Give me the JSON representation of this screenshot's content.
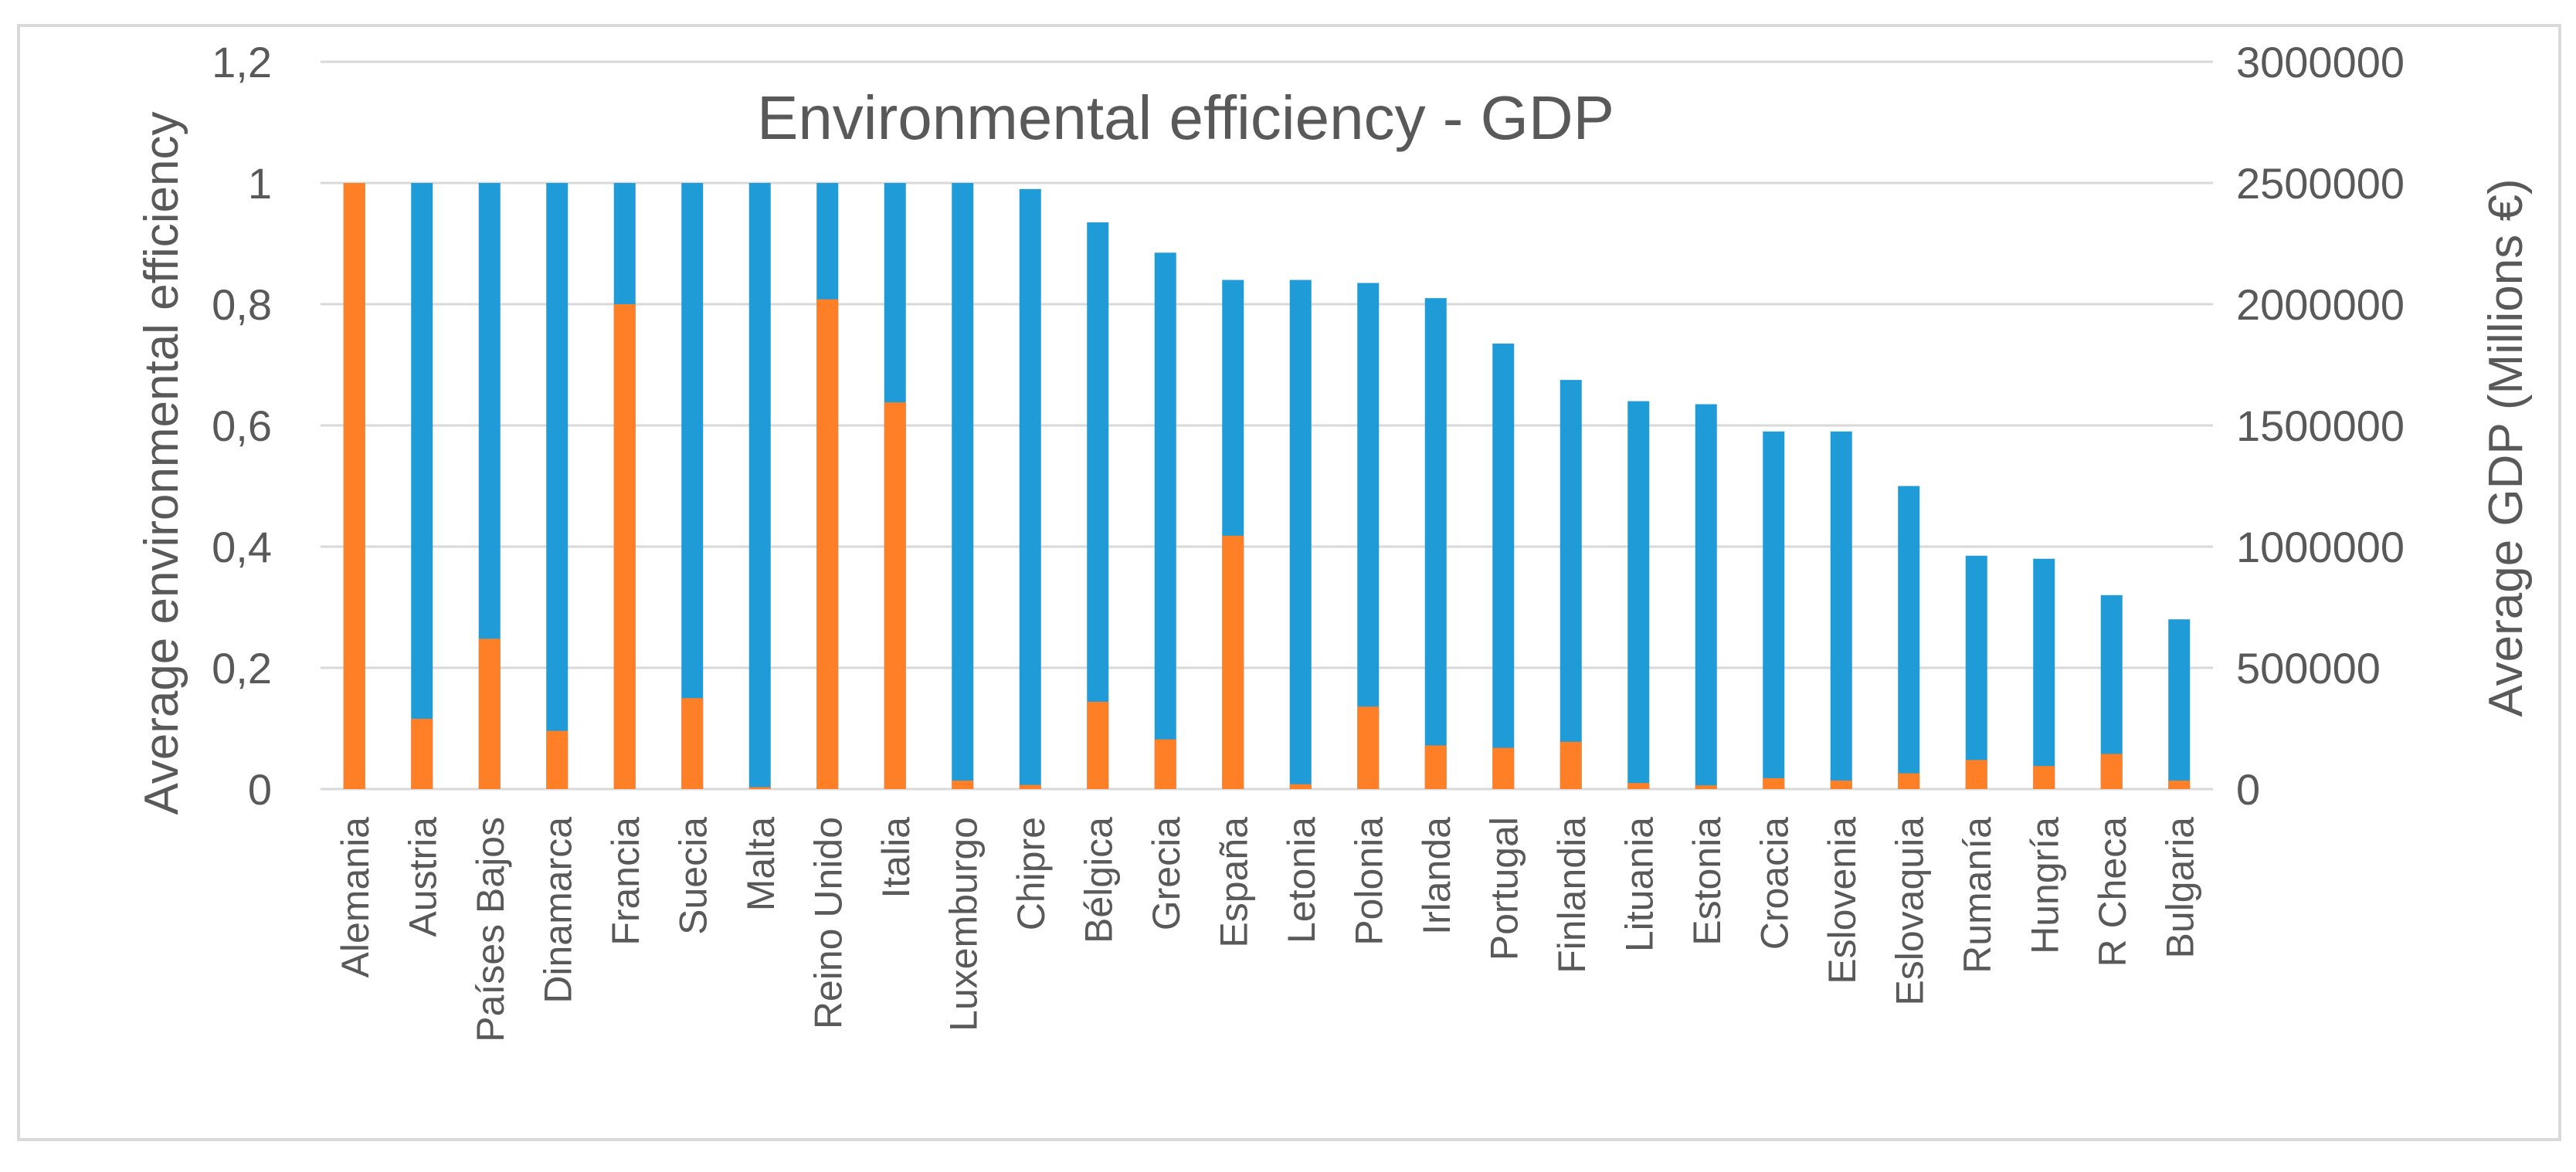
{
  "chart_data": {
    "type": "bar",
    "title": "Environmental efficiency - GDP",
    "xlabel": "",
    "ylabel": "Average environmental efficiency",
    "ylabel_right": "Average GDP (Millions €)",
    "ylim": [
      0,
      1.2
    ],
    "ylim_right": [
      0,
      3000000
    ],
    "y_ticks": [
      "0",
      "0,2",
      "0,4",
      "0,6",
      "0,8",
      "1",
      "1,2"
    ],
    "y_right_ticks": [
      "0",
      "500000",
      "1000000",
      "1500000",
      "2000000",
      "2500000",
      "3000000"
    ],
    "grid": true,
    "categories": [
      "Alemania",
      "Austria",
      "Países Bajos",
      "Dinamarca",
      "Francia",
      "Suecia",
      "Malta",
      "Reino Unido",
      "Italia",
      "Luxemburgo",
      "Chipre",
      "Bélgica",
      "Grecia",
      "España",
      "Letonia",
      "Polonia",
      "Irlanda",
      "Portugal",
      "Finlandia",
      "Lituania",
      "Estonia",
      "Croacia",
      "Eslovenia",
      "Eslovaquia",
      "Rumanía",
      "Hungría",
      "R Checa",
      "Bulgaria"
    ],
    "series": [
      {
        "name": "Average environmental efficiency",
        "axis": "left",
        "color": "#1F9BD7",
        "values": [
          1,
          1,
          1,
          1,
          1,
          1,
          1,
          1,
          1,
          1,
          0.99,
          0.935,
          0.885,
          0.84,
          0.84,
          0.835,
          0.81,
          0.735,
          0.675,
          0.64,
          0.635,
          0.59,
          0.59,
          0.5,
          0.385,
          0.38,
          0.32,
          0.28
        ]
      },
      {
        "name": "Average GDP (Millions €)",
        "axis": "right",
        "color": "#FF7F27",
        "values": [
          2500000,
          290000,
          620000,
          240000,
          2000000,
          375000,
          8000,
          2020000,
          1595000,
          35000,
          17000,
          360000,
          205000,
          1045000,
          20000,
          340000,
          180000,
          170000,
          195000,
          25000,
          15000,
          45000,
          35000,
          65000,
          120000,
          95000,
          145000,
          35000
        ]
      }
    ]
  },
  "colors": {
    "efficiency": "#1F9BD7",
    "gdp": "#FF7F27",
    "grid": "#D9D9D9",
    "border": "#D9D9D9",
    "text": "#595959"
  }
}
